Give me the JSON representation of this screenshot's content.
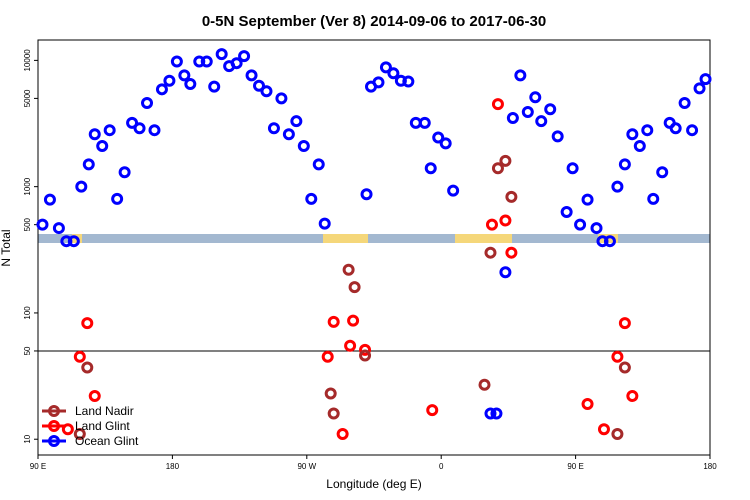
{
  "chart_data": {
    "type": "scatter",
    "title": "0-5N September (Ver 8)   2014-09-06 to 2017-06-30",
    "xlabel": "Longitude (deg E)",
    "ylabel": "N Total",
    "log_y": true,
    "xlim": [
      90,
      540
    ],
    "ylim": [
      7.5,
      14500
    ],
    "xticks": [
      {
        "value": 90,
        "label": "90 E"
      },
      180,
      {
        "value": 270,
        "label": "90 W"
      },
      {
        "value": 360,
        "label": "0"
      },
      {
        "value": 450,
        "label": "90 E"
      },
      {
        "value": 540,
        "label": "180"
      }
    ],
    "yticks": [
      10,
      50,
      100,
      500,
      1000,
      5000,
      10000
    ],
    "hline": 50,
    "legend": "bottom-left",
    "series": [
      {
        "name": "Land Nadir",
        "color": "#a52a2a",
        "x": [
          118,
          123,
          286,
          288,
          298,
          302,
          309,
          389,
          393,
          398,
          403,
          407,
          478,
          483
        ],
        "values": [
          11,
          37,
          23,
          16,
          220,
          160,
          46,
          27,
          300,
          1400,
          1600,
          830,
          11,
          37
        ]
      },
      {
        "name": "Land Glint",
        "color": "#ff0000",
        "x": [
          110,
          118,
          123,
          128,
          284,
          288,
          294,
          299,
          301,
          309,
          354,
          394,
          398,
          403,
          407,
          458,
          469,
          478,
          483,
          488
        ],
        "values": [
          12,
          45,
          83,
          22,
          45,
          85,
          11,
          55,
          87,
          51,
          17,
          500,
          4500,
          540,
          300,
          19,
          12,
          45,
          83,
          22
        ]
      },
      {
        "name": "Ocean Glint",
        "color": "#0000ff",
        "x": [
          93,
          98,
          104,
          109,
          114,
          119,
          124,
          128,
          133,
          138,
          143,
          148,
          153,
          158,
          163,
          168,
          173,
          178,
          183,
          188,
          192,
          198,
          203,
          208,
          213,
          218,
          223,
          228,
          233,
          238,
          243,
          248,
          253,
          258,
          263,
          268,
          273,
          278,
          282,
          310,
          313,
          318,
          323,
          328,
          333,
          338,
          343,
          349,
          353,
          358,
          363,
          368,
          393,
          397,
          403,
          408,
          413,
          418,
          423,
          427,
          433,
          438,
          444,
          448,
          453,
          458,
          464,
          468,
          473,
          478,
          483,
          488,
          493,
          498,
          502,
          508,
          513,
          517,
          523,
          528,
          533,
          537
        ],
        "values": [
          500,
          790,
          470,
          370,
          370,
          1000,
          1500,
          2600,
          2100,
          2800,
          800,
          1300,
          3200,
          2900,
          4600,
          2800,
          5900,
          6900,
          9800,
          7600,
          6500,
          9800,
          9800,
          6200,
          11200,
          9000,
          9500,
          10800,
          7600,
          6300,
          5700,
          2900,
          5000,
          2600,
          3300,
          2100,
          800,
          1500,
          510,
          870,
          6200,
          6700,
          8800,
          7900,
          6900,
          6800,
          3200,
          3200,
          1400,
          2450,
          2200,
          930,
          16,
          16,
          210,
          3500,
          7600,
          3900,
          5100,
          3300,
          4100,
          2500,
          630,
          1400,
          500,
          790,
          470,
          370,
          370,
          1000,
          1500,
          2600,
          2100,
          2800,
          800,
          1300,
          3200,
          2900,
          4600,
          2800,
          6000,
          7100
        ]
      }
    ]
  }
}
